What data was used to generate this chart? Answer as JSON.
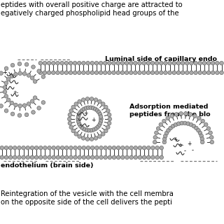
{
  "bg_color": "#ffffff",
  "fig_w": 3.2,
  "fig_h": 3.2,
  "dpi": 100,
  "text_top1": "eptides with overall positive charge are attracted to",
  "text_top2": "egatively charged phospholipid head groups of the",
  "text_luminal": "Luminal side of capillary endo",
  "text_adsorption1": "Adsorption mediated",
  "text_adsorption2": "peptides from the blo",
  "text_brain": "endothelium (brain side)",
  "text_bottom1": "Reintegration of the vesicle with the cell membra",
  "text_bottom2": "on the opposite side of the cell delivers the pepti",
  "head_color": "#aaaaaa",
  "head_ec": "#555555",
  "tail_color": "#333333",
  "dash_color": "#777777",
  "text_color": "#000000"
}
